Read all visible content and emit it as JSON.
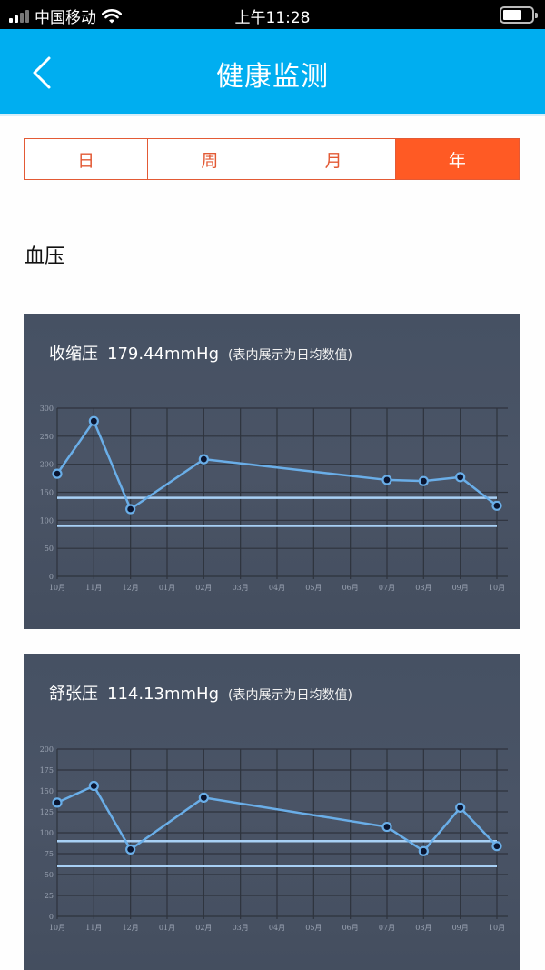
{
  "status_bar": {
    "carrier": "中国移动",
    "time": "上午11:28",
    "icons": [
      "signal-icon",
      "wifi-icon",
      "battery-icon"
    ]
  },
  "nav": {
    "back_icon": "chevron-left-icon",
    "title": "健康监测"
  },
  "segments": [
    {
      "label": "日",
      "active": false
    },
    {
      "label": "周",
      "active": false
    },
    {
      "label": "月",
      "active": false
    },
    {
      "label": "年",
      "active": true
    }
  ],
  "section": {
    "title": "血压"
  },
  "colors": {
    "nav_bg": "#00aef0",
    "accent": "#ff5a24",
    "segment_border": "#e35a35",
    "card_bg": "#4a5466",
    "line": "#6aaee8",
    "reference_line": "#a8d0f5"
  },
  "cards": [
    {
      "label": "收缩压",
      "value": "179.44mmHg",
      "note": "(表内展示为日均数值)"
    },
    {
      "label": "舒张压",
      "value": "114.13mmHg",
      "note": "(表内展示为日均数值)"
    }
  ],
  "chart_data": [
    {
      "type": "line",
      "title": "收缩压 179.44mmHg (表内展示为日均数值)",
      "xlabel": "",
      "ylabel": "",
      "categories": [
        "10月",
        "11月",
        "12月",
        "01月",
        "02月",
        "03月",
        "04月",
        "05月",
        "06月",
        "07月",
        "08月",
        "09月",
        "10月"
      ],
      "yticks": [
        0,
        50,
        100,
        150,
        200,
        250,
        300
      ],
      "ylim": [
        0,
        300
      ],
      "grid": true,
      "series": [
        {
          "name": "收缩压",
          "points": [
            {
              "x": "10月",
              "idx": 0,
              "y": 183
            },
            {
              "x": "11月",
              "idx": 1,
              "y": 277
            },
            {
              "x": "12月",
              "idx": 2,
              "y": 120
            },
            {
              "x": "02月",
              "idx": 4,
              "y": 209
            },
            {
              "x": "07月",
              "idx": 9,
              "y": 172
            },
            {
              "x": "08月",
              "idx": 10,
              "y": 170
            },
            {
              "x": "09月",
              "idx": 11,
              "y": 177
            },
            {
              "x": "10月",
              "idx": 12,
              "y": 126
            }
          ]
        }
      ],
      "reference_lines": [
        140,
        90
      ]
    },
    {
      "type": "line",
      "title": "舒张压 114.13mmHg (表内展示为日均数值)",
      "xlabel": "",
      "ylabel": "",
      "categories": [
        "10月",
        "11月",
        "12月",
        "01月",
        "02月",
        "03月",
        "04月",
        "05月",
        "06月",
        "07月",
        "08月",
        "09月",
        "10月"
      ],
      "yticks": [
        0,
        25,
        50,
        75,
        100,
        125,
        150,
        175,
        200
      ],
      "ylim": [
        0,
        200
      ],
      "grid": true,
      "series": [
        {
          "name": "舒张压",
          "points": [
            {
              "x": "10月",
              "idx": 0,
              "y": 136
            },
            {
              "x": "11月",
              "idx": 1,
              "y": 156
            },
            {
              "x": "12月",
              "idx": 2,
              "y": 80
            },
            {
              "x": "02月",
              "idx": 4,
              "y": 142
            },
            {
              "x": "07月",
              "idx": 9,
              "y": 107
            },
            {
              "x": "08月",
              "idx": 10,
              "y": 78
            },
            {
              "x": "09月",
              "idx": 11,
              "y": 130
            },
            {
              "x": "10月",
              "idx": 12,
              "y": 84
            }
          ]
        }
      ],
      "reference_lines": [
        90,
        60
      ]
    }
  ]
}
